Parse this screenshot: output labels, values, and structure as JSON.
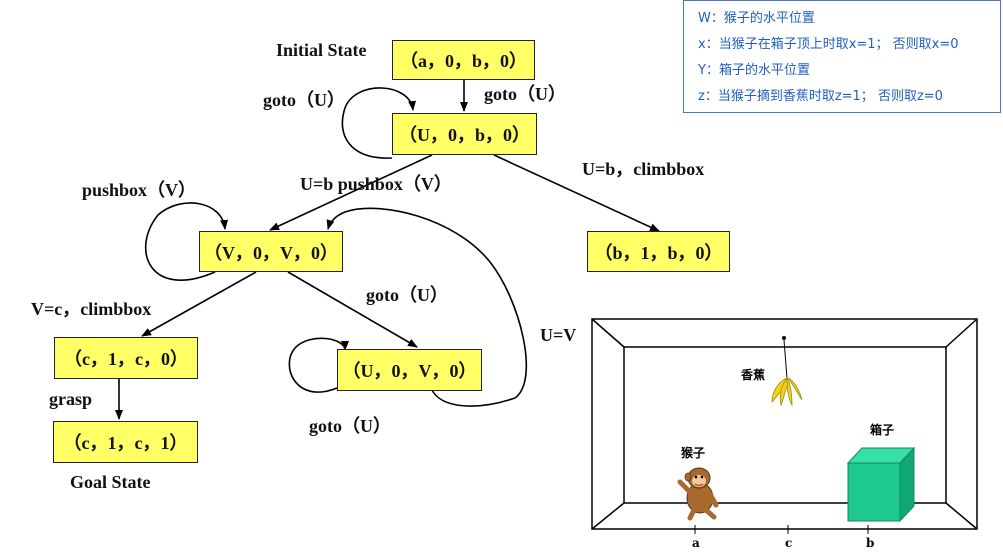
{
  "legend": {
    "w": "W：猴子的水平位置",
    "x": "x：当猴子在箱子顶上时取x=1； 否则取x=0",
    "y": "Y：箱子的水平位置",
    "z": "z：当猴子摘到香蕉时取z=1； 否则取z=0"
  },
  "states": {
    "initial": "（a，0，b，0）",
    "s_u0b0": "（U，0，b，0）",
    "s_b1b0": "（b，1，b，0）",
    "s_v0v0": "（V，0，V，0）",
    "s_c1c0": "（c，1，c，0）",
    "s_u0v0": "（U，0，V，0）",
    "goal": "（c，1，c，1）"
  },
  "labels": {
    "initial_state": "Initial State",
    "goal_state": "Goal State",
    "goto_loop_top": "goto（U）",
    "goto_down": "goto（U）",
    "u_eq_b_climb": "U=b，climbbox",
    "u_eq_b_push": "U=b pushbox（V）",
    "pushbox_loop": "pushbox（V）",
    "v_eq_c_climb": "V=c，climbbox",
    "goto_mid": "goto（U）",
    "goto_loop_bottom": "goto（U）",
    "grasp": "grasp",
    "u_eq_v": "U=V"
  },
  "scene": {
    "banana_label": "香蕉",
    "monkey_label": "猴子",
    "box_label": "箱子",
    "pos_a": "a",
    "pos_c": "c",
    "pos_b": "b",
    "box_color": "#1fc98e",
    "banana_color": "#f2d21b"
  },
  "colors": {
    "state_fill": "#ffff66",
    "legend_text": "#1f5fbf",
    "legend_border": "#4a78b8"
  }
}
